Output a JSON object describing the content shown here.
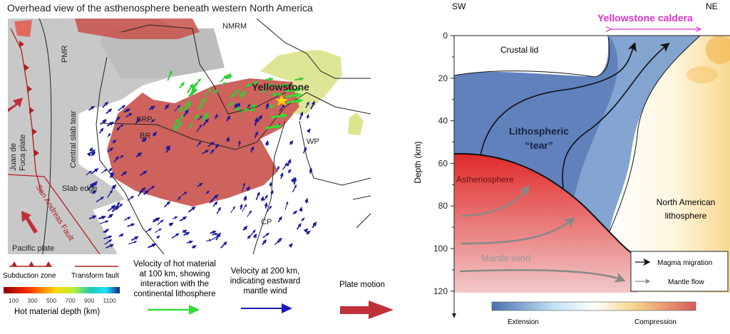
{
  "map": {
    "title": "Overhead view of the asthenosphere beneath western North America",
    "labels": {
      "nmrm": "NMRM",
      "pmr": "PMR",
      "yellowstone": "Yellowstone",
      "central_slab_tear": "Central slab tear",
      "srp": "SRP",
      "br": "BR",
      "juan_de_fuca_1": "Juan de",
      "juan_de_fuca_2": "Fuca plate",
      "wp": "WP",
      "slab_edge": "Slab edge",
      "san_andreas": "San Andreas Fault",
      "cp": "CP",
      "pacific_plate": "Pacific plate"
    }
  },
  "legend": {
    "subduction_zone": "Subduction zone",
    "transform_fault": "Transform fault",
    "depth_ticks": [
      "100",
      "300",
      "500",
      "700",
      "900",
      "1100"
    ],
    "depth_label": "Hot material depth (km)",
    "green_arrow": [
      "Velocity of hot material",
      "at 100 km, showing",
      "interaction with the",
      "continental lithosphere"
    ],
    "blue_arrow": [
      "Velocity at 200 km,",
      "indicating eastward",
      "mantle wind"
    ],
    "plate_motion": "Plate motion"
  },
  "section": {
    "sw": "SW",
    "ne": "NE",
    "caldera": "Yellowstone caldera",
    "ylabel": "Depth (km)",
    "yticks": [
      0,
      20,
      40,
      60,
      80,
      100,
      120
    ],
    "crustal_lid": "Crustal lid",
    "tear_1": "Lithospheric",
    "tear_2": "“tear”",
    "asthenosphere": "Asthenosphere",
    "na_lith_1": "North American",
    "na_lith_2": "lithosphere",
    "mantle_wind": "Mantle wind",
    "legend_magma": "Magma migration",
    "legend_mantle": "Mantle flow",
    "colorbar_left": "Extension",
    "colorbar_right": "Compression"
  },
  "colors": {
    "hot_material": "#c9514b",
    "slab": "#c8c8c8",
    "green_arrow": "#33dd33",
    "blue_arrow": "#1a1a9a",
    "plate_motion": "#c0303a",
    "caldera": "#dd33cc",
    "extension": "#4a6fb0",
    "compression": "#d85a5a"
  }
}
